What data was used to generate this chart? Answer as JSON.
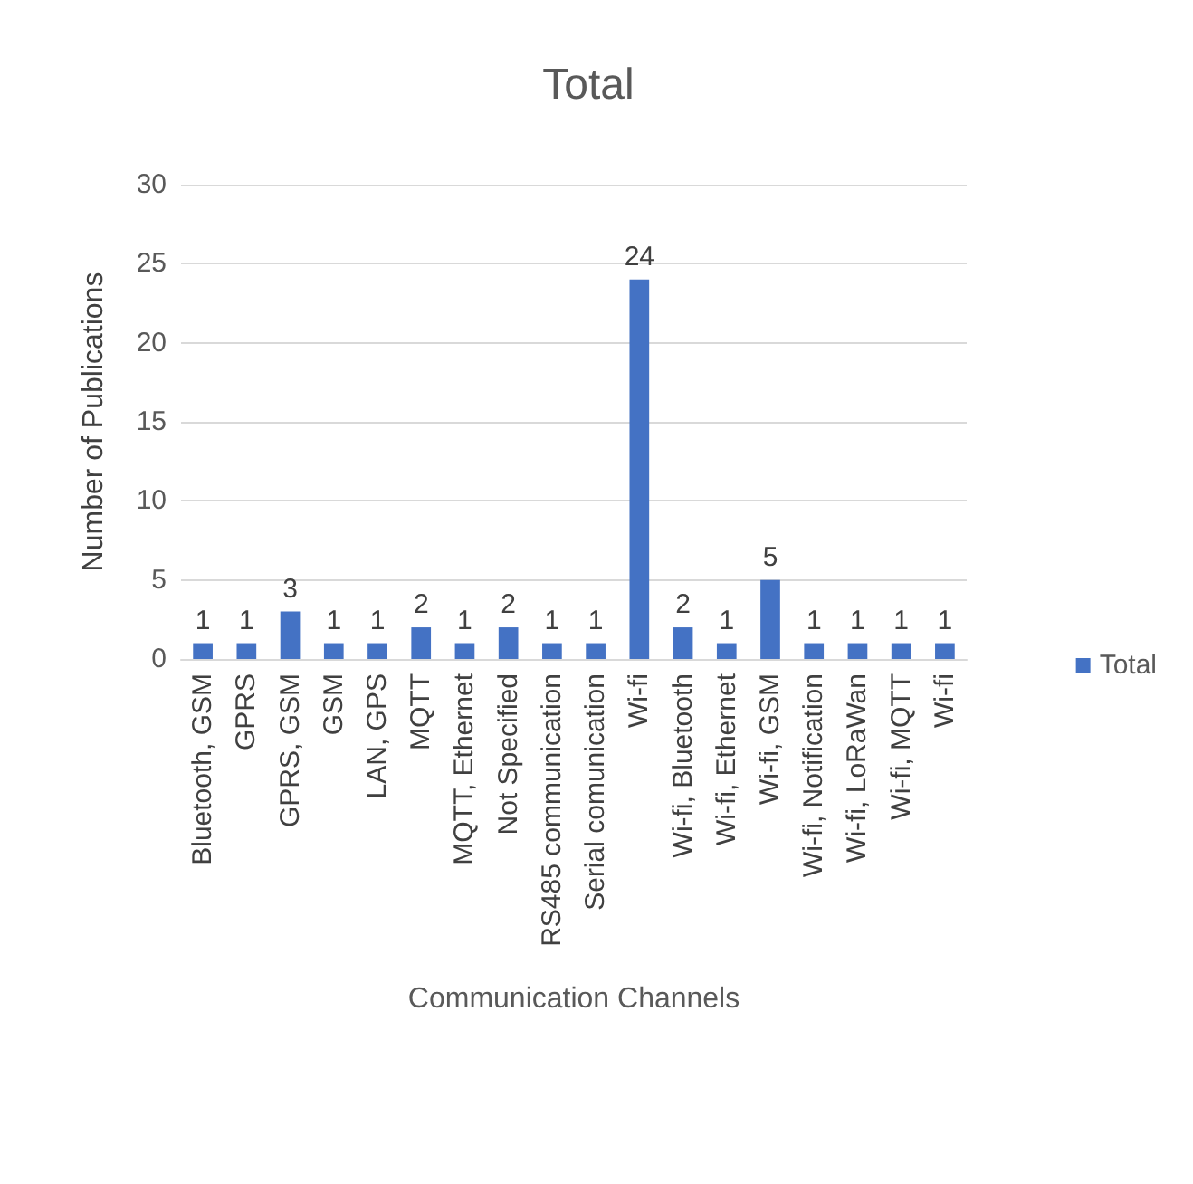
{
  "chart_data": {
    "type": "bar",
    "title": "Total",
    "xlabel": "Communication Channels",
    "ylabel": "Number of Publications",
    "categories": [
      "Bluetooth, GSM",
      "GPRS",
      "GPRS, GSM",
      "GSM",
      "LAN, GPS",
      "MQTT",
      "MQTT, Ethernet",
      "Not Specified",
      "RS485 communication",
      "Serial comunication",
      "Wi-fi",
      "Wi-fi, Bluetooth",
      "Wi-fi, Ethernet",
      "Wi-fi, GSM",
      "Wi-fi, Notification",
      "Wi-fi, LoRaWan",
      "Wi-fi, MQTT",
      "Wi-fi"
    ],
    "series": [
      {
        "name": "Total",
        "color": "#4472c4",
        "values": [
          1,
          1,
          3,
          1,
          1,
          2,
          1,
          2,
          1,
          1,
          24,
          2,
          1,
          5,
          1,
          1,
          1,
          1
        ]
      }
    ],
    "ylim": [
      0,
      30
    ],
    "yticks": [
      0,
      5,
      10,
      15,
      20,
      25,
      30
    ],
    "grid": "y",
    "legend": "right",
    "data_labels": true
  }
}
